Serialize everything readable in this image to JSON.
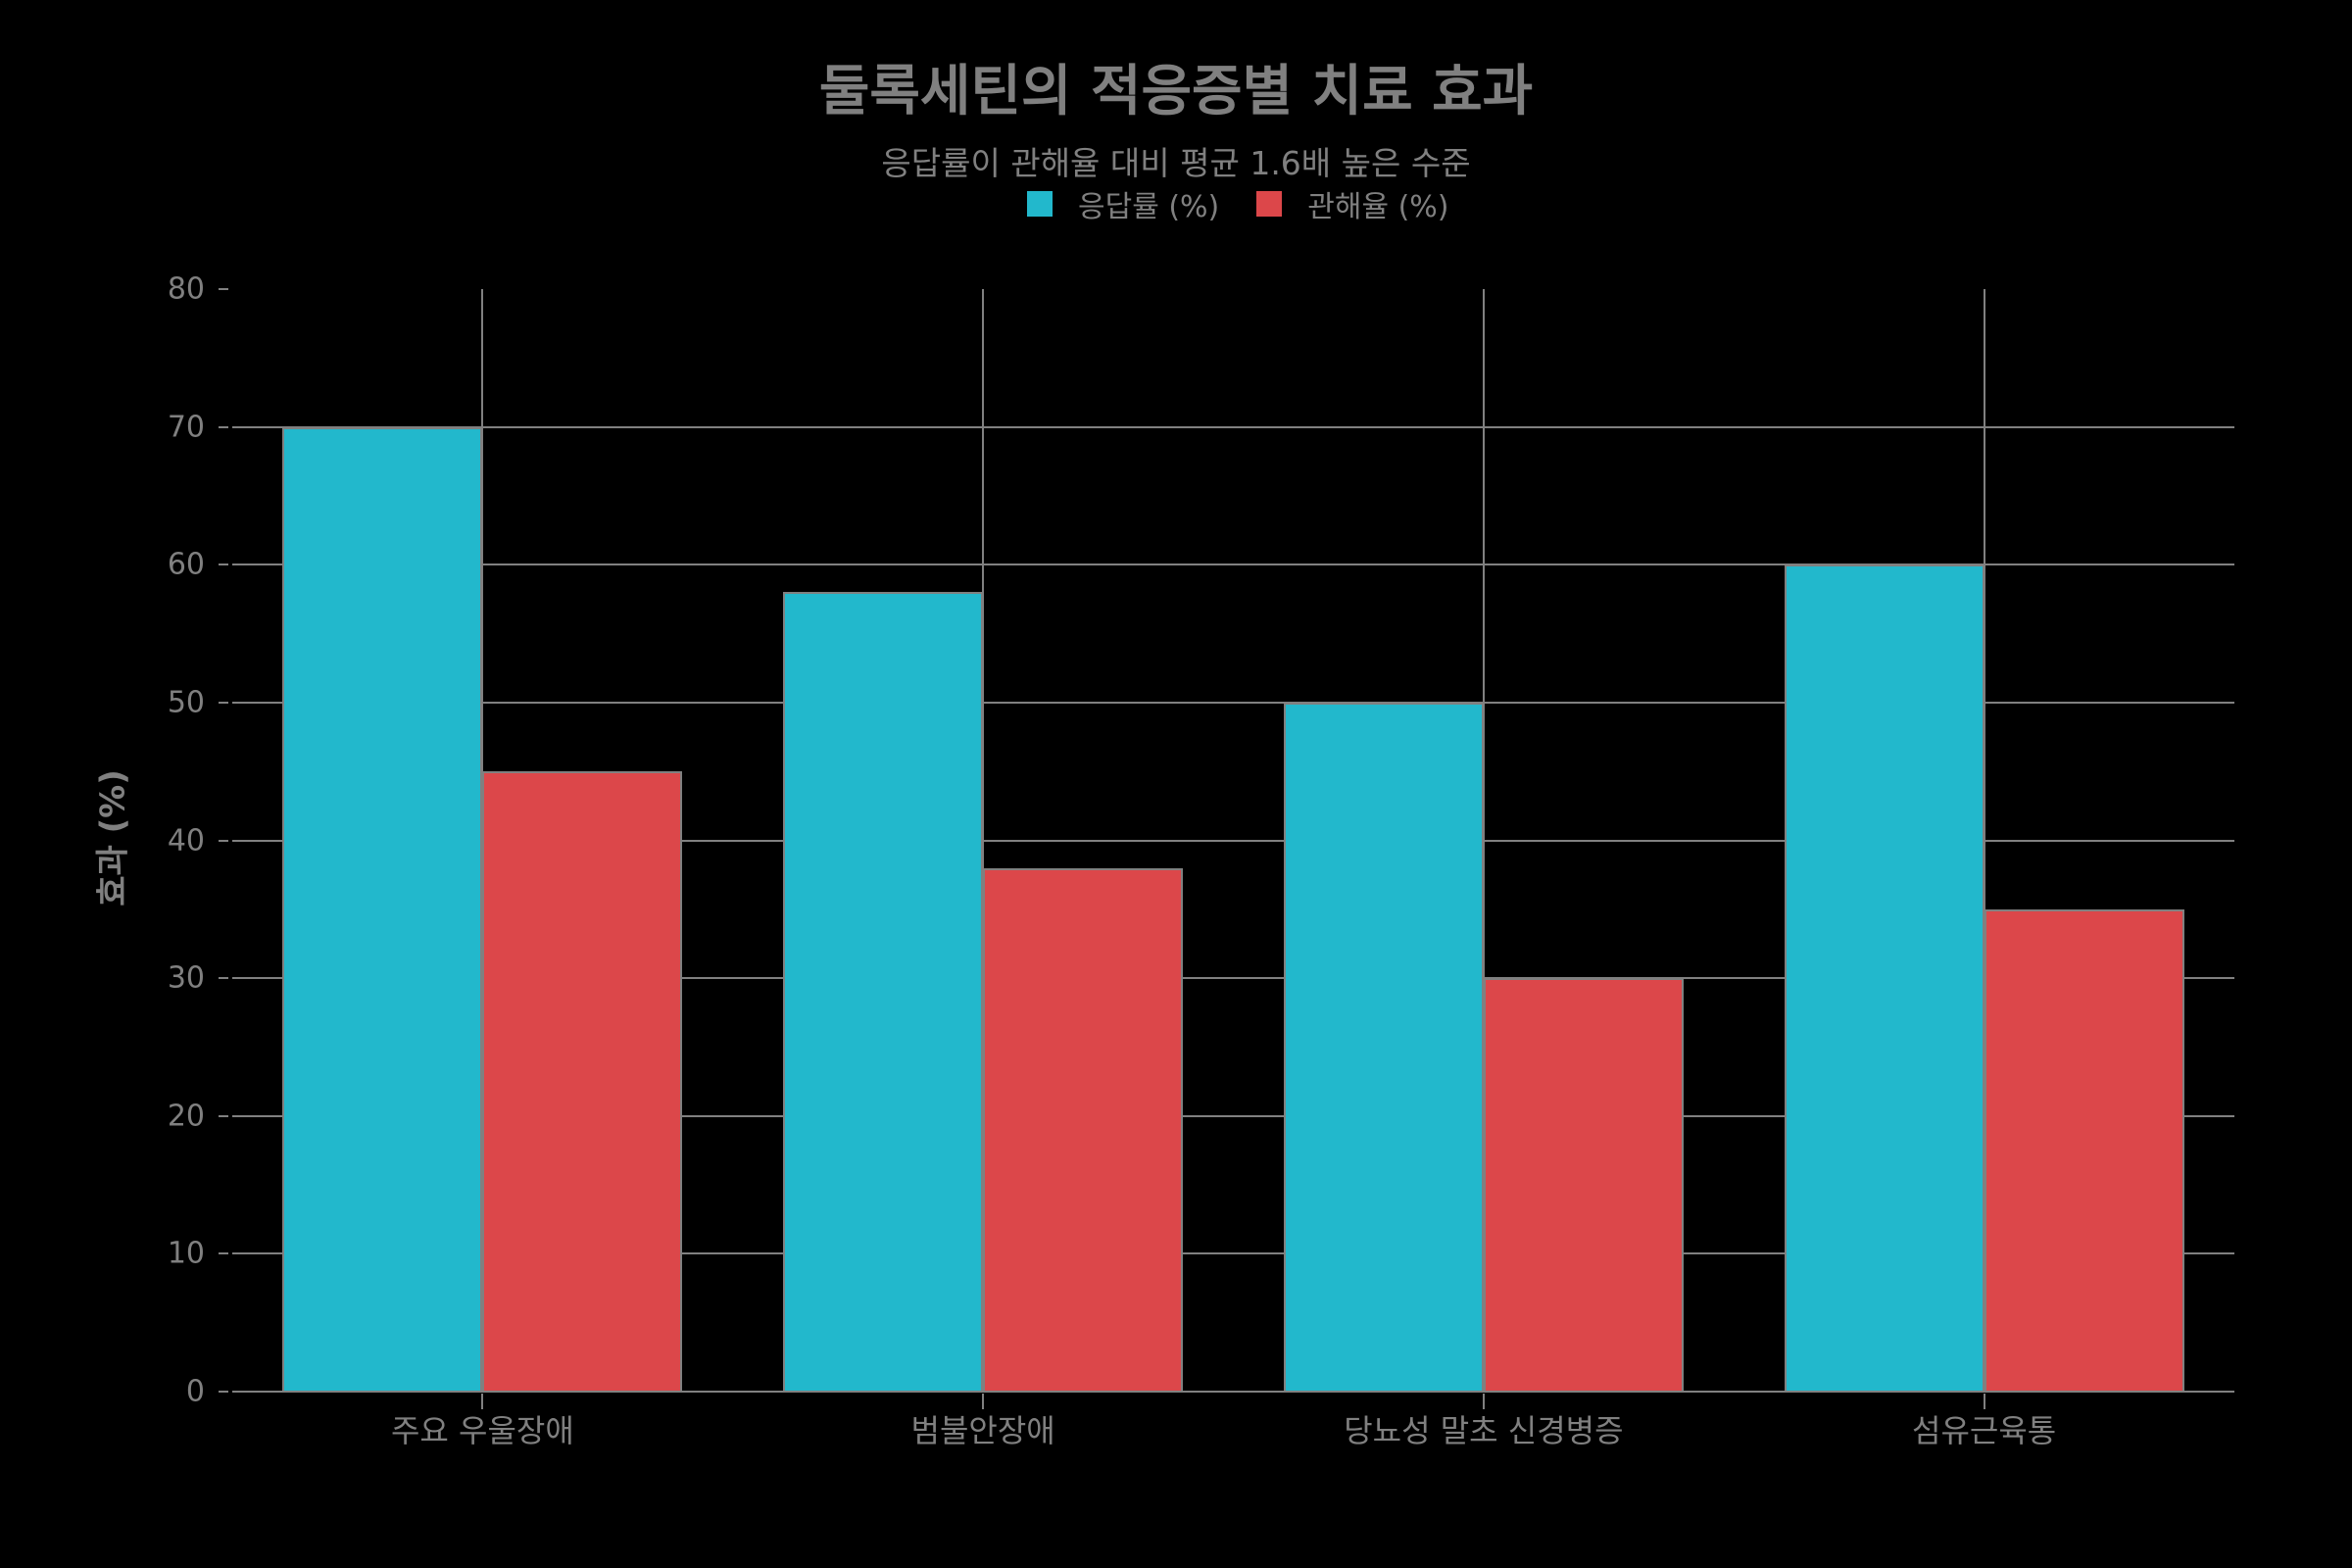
{
  "chart_data": {
    "type": "bar",
    "title": "둘록세틴의 적응증별 치료 효과",
    "subtitle": "응답률이 관해율 대비 평균 1.6배 높은 수준",
    "categories": [
      "주요 우울장애",
      "범불안장애",
      "당뇨성 말초 신경병증",
      "섬유근육통"
    ],
    "series": [
      {
        "name": "응답률 (%)",
        "color": "#22b8cc",
        "values": [
          70,
          58,
          50,
          60
        ]
      },
      {
        "name": "관해율 (%)",
        "color": "#dc474a",
        "values": [
          45,
          38,
          30,
          35
        ]
      }
    ],
    "xlabel": "",
    "ylabel": "효과 (%)",
    "ylim": [
      0,
      80
    ],
    "yticks": [
      "0",
      "10",
      "20",
      "30",
      "40",
      "50",
      "60",
      "70",
      "80"
    ],
    "grid": true,
    "legend_position": "top-center"
  },
  "colors": {
    "background": "#000000",
    "text": "#808080",
    "grid": "#808080"
  }
}
